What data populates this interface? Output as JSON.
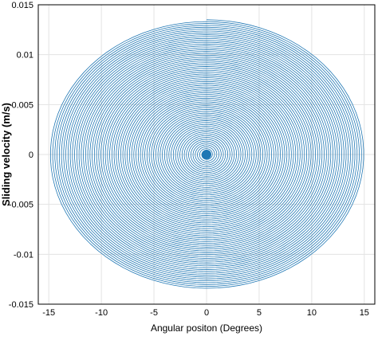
{
  "chart_data": {
    "type": "line",
    "title": "",
    "xlabel": "Angular positon (Degrees)",
    "ylabel": "Sliding velocity (m/s)",
    "xlim": [
      -16,
      16
    ],
    "ylim": [
      -0.015,
      0.015
    ],
    "xticks": [
      "-15",
      "-10",
      "-5",
      "0",
      "5",
      "10",
      "15"
    ],
    "yticks": [
      "0.015",
      "0.01",
      "0.005",
      "0",
      "-0.005",
      "-0.01",
      "-0.015"
    ],
    "grid": true,
    "series": [
      {
        "color": "#1f77b4",
        "description_values": {
          "shape": "decaying spiral orbit around origin",
          "outer_x_amplitude_deg": 15,
          "outer_y_amplitude": 0.0135,
          "inner_x_amplitude_deg": 0.4,
          "inner_y_amplitude": 0.0004,
          "center": [
            0,
            0
          ]
        }
      }
    ]
  }
}
